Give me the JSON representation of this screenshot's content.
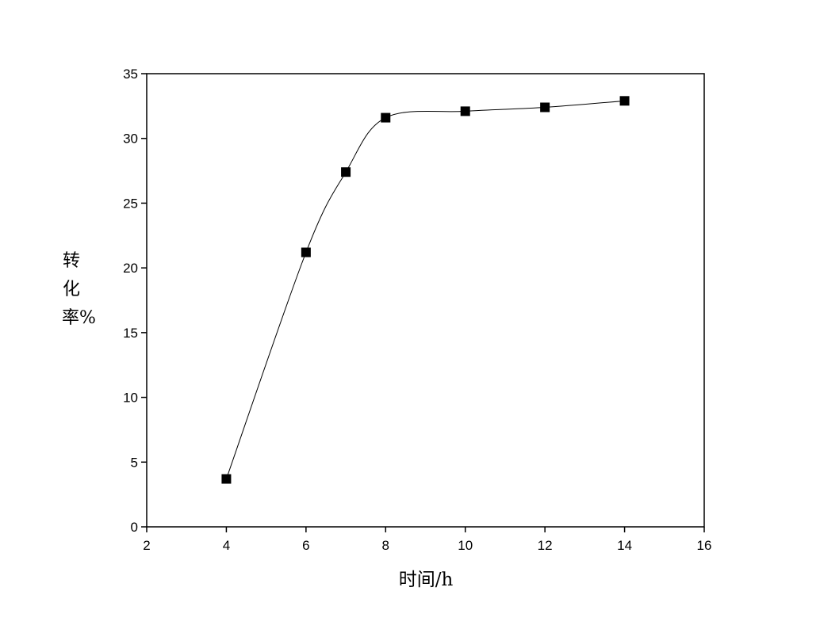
{
  "chart_data": {
    "type": "line",
    "x_label": "时间/h",
    "y_label": "转化率%",
    "x": [
      4,
      6,
      7,
      8,
      10,
      12,
      14
    ],
    "series": [
      {
        "values": [
          3.7,
          21.2,
          27.4,
          31.6,
          32.1,
          32.4,
          32.9
        ],
        "color": "#000000",
        "marker": "square",
        "smooth": true
      }
    ],
    "xlim": [
      2,
      16
    ],
    "xticks": [
      2,
      4,
      6,
      8,
      10,
      12,
      14,
      16
    ],
    "ylim": [
      0,
      35
    ],
    "yticks": [
      0,
      5,
      10,
      15,
      20,
      25,
      30,
      35
    ],
    "grid": false
  }
}
